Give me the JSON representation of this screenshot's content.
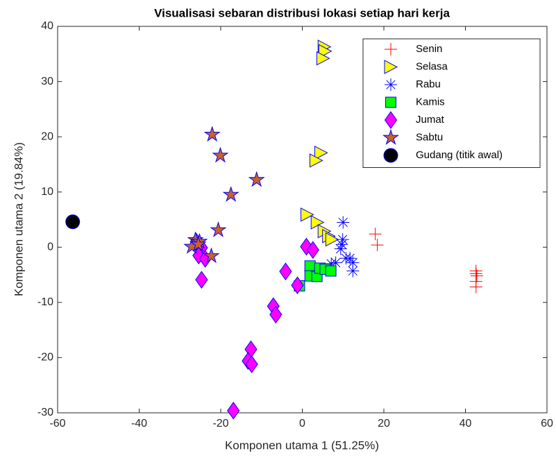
{
  "chart_data": {
    "type": "scatter",
    "title": "Visualisasi sebaran distribusi lokasi setiap hari kerja",
    "xlabel": "Komponen utama 1 (51.25%)",
    "ylabel": "Komponen utama 2 (19.84%)",
    "xlim": [
      -60,
      60
    ],
    "xticks": [
      -60,
      -40,
      -20,
      0,
      20,
      40,
      60
    ],
    "ylim": [
      -30,
      40
    ],
    "yticks": [
      -30,
      -20,
      -10,
      0,
      10,
      20,
      30,
      40
    ],
    "grid": false,
    "legend": "northeast",
    "series": [
      {
        "name": "Senin",
        "marker": "+",
        "color": "#ff0000",
        "edge": "#ff0000",
        "x": [
          17.9,
          18.4,
          42.6,
          42.6,
          42.8,
          42.6,
          42.6
        ],
        "values": [
          2.4,
          0.4,
          -4.3,
          -4.8,
          -5.2,
          -6.2,
          -7.2
        ]
      },
      {
        "name": "Selasa",
        "marker": ">",
        "color": "#ffff00",
        "edge": "#0000ff",
        "x": [
          5.4,
          5.6,
          5.1,
          4.6,
          3.4,
          1.2,
          3.7,
          5.4,
          6.5,
          7.3
        ],
        "values": [
          36.3,
          35.5,
          34.2,
          17.1,
          15.7,
          5.9,
          4.5,
          2.9,
          2.0,
          1.4
        ]
      },
      {
        "name": "Rabu",
        "marker": "*",
        "color": "#0000ff",
        "edge": "#0000ff",
        "x": [
          10,
          9.9,
          9.7,
          9.4,
          8.2,
          10.7,
          12.4,
          11.7,
          12.4,
          7.1
        ],
        "values": [
          4.5,
          1.4,
          0.5,
          -0.3,
          -2.8,
          -2,
          -2.8,
          -2,
          -4.3,
          -3
        ]
      },
      {
        "name": "Kamis",
        "marker": "s",
        "color": "#00ff00",
        "edge": "#0000ff",
        "x": [
          1.9,
          -0.7,
          1.9,
          3.6,
          4.3,
          5.6,
          7
        ],
        "values": [
          -3.4,
          -7.0,
          -5.2,
          -5.3,
          -3.8,
          -4,
          -4.3
        ]
      },
      {
        "name": "Jumat",
        "marker": "d",
        "color": "#ff00ff",
        "edge": "#0000ff",
        "x": [
          1,
          2.6,
          -4.1,
          -1.2,
          -7.1,
          -6.5,
          -12.6,
          -13.3,
          -12.4,
          -16.9,
          -26,
          -24.7,
          -25.4,
          -23.8,
          -24.7
        ],
        "values": [
          0.1,
          -0.5,
          -4.4,
          -6.9,
          -10.7,
          -12.2,
          -18.5,
          -20.6,
          -21.2,
          -29.6,
          1,
          -0.1,
          -1.5,
          -2.1,
          -5.9
        ]
      },
      {
        "name": "Sabtu",
        "marker": "p",
        "color": "#c8602f",
        "edge": "#0000ff",
        "x": [
          -22.1,
          -20.1,
          -11.2,
          -17.5,
          -20.6,
          -26.2,
          -27.1,
          -25.2,
          -22.3,
          -25.5
        ],
        "values": [
          20.4,
          16.6,
          12.2,
          9.5,
          3.1,
          1.3,
          0.1,
          1,
          -1.6,
          0.5
        ]
      },
      {
        "name": "Gudang (titik awal)",
        "marker": "o",
        "color": "#000000",
        "edge": "#0000ff",
        "x": [
          -56.3
        ],
        "values": [
          4.6
        ]
      }
    ]
  }
}
